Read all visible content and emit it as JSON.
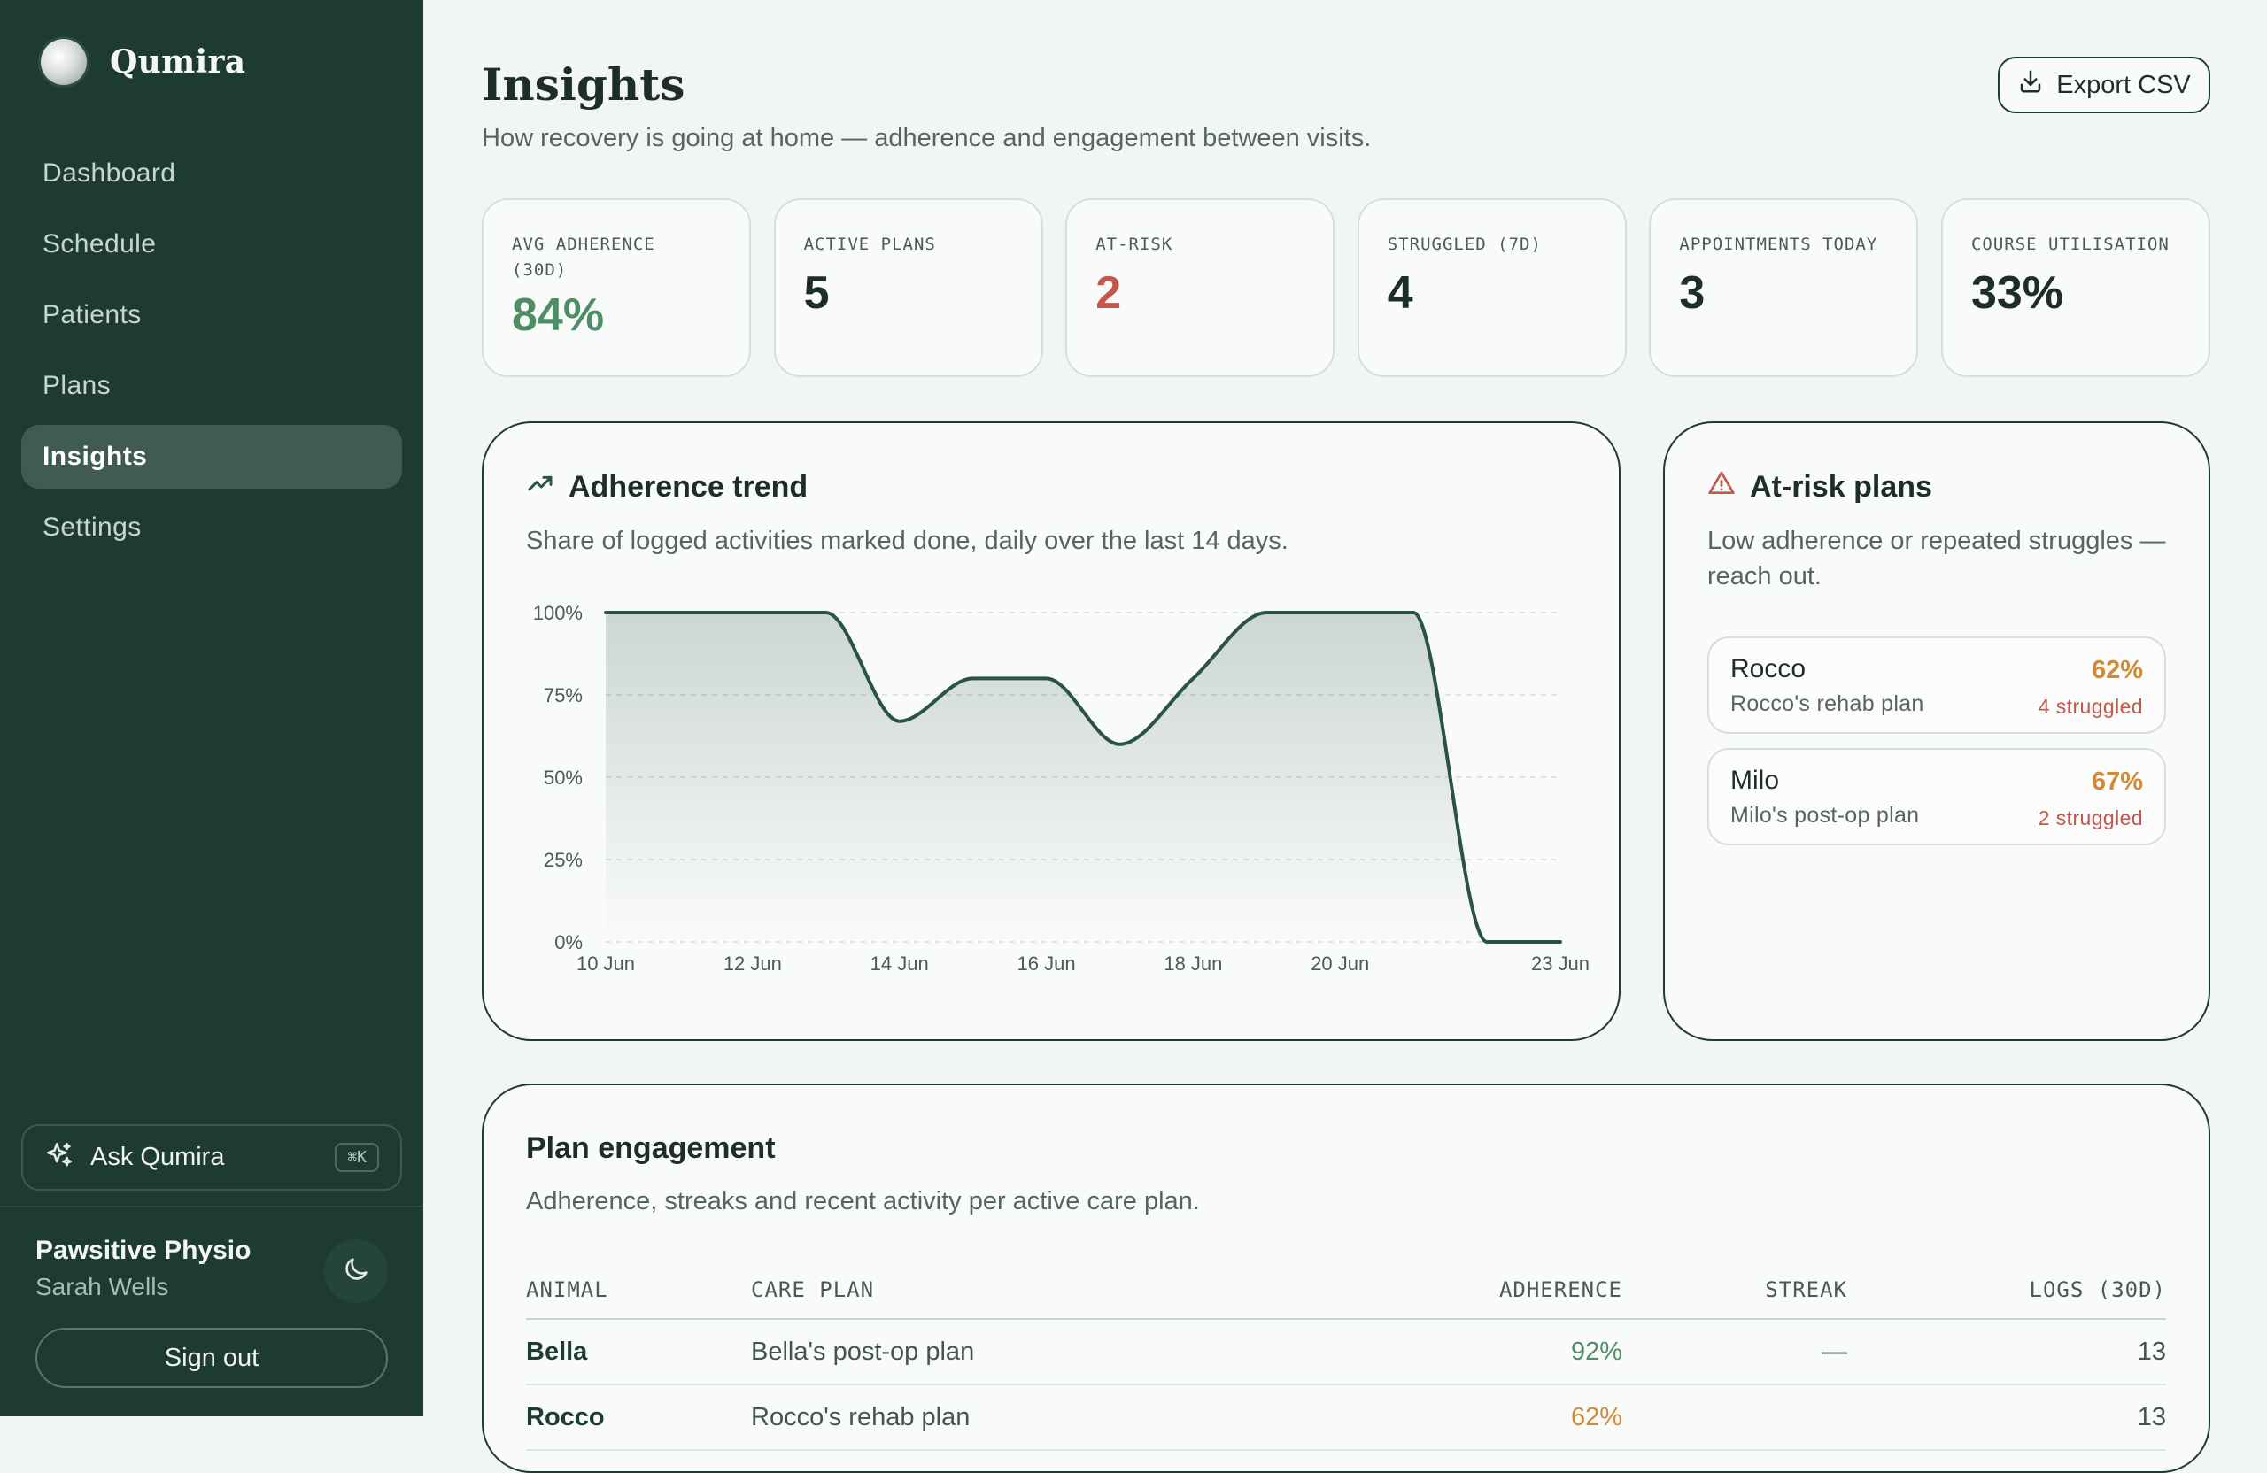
{
  "app": {
    "name": "Qumira"
  },
  "nav": [
    {
      "label": "Dashboard",
      "active": false
    },
    {
      "label": "Schedule",
      "active": false
    },
    {
      "label": "Patients",
      "active": false
    },
    {
      "label": "Plans",
      "active": false
    },
    {
      "label": "Insights",
      "active": true
    },
    {
      "label": "Settings",
      "active": false
    }
  ],
  "ask": {
    "label": "Ask Qumira",
    "shortcut": "⌘K"
  },
  "account": {
    "org": "Pawsitive Physio",
    "user": "Sarah Wells",
    "signout": "Sign out"
  },
  "page": {
    "title": "Insights",
    "subtitle": "How recovery is going at home — adherence and engagement between visits.",
    "export_label": "Export CSV"
  },
  "stats": [
    {
      "label": "AVG ADHERENCE (30D)",
      "value": "84%",
      "color": "#4e8d66"
    },
    {
      "label": "ACTIVE PLANS",
      "value": "5",
      "color": "#1d2e28"
    },
    {
      "label": "AT-RISK",
      "value": "2",
      "color": "#c4574a"
    },
    {
      "label": "STRUGGLED (7D)",
      "value": "4",
      "color": "#1d2e28"
    },
    {
      "label": "APPOINTMENTS TODAY",
      "value": "3",
      "color": "#1d2e28"
    },
    {
      "label": "COURSE UTILISATION",
      "value": "33%",
      "color": "#1d2e28"
    }
  ],
  "trend": {
    "title": "Adherence trend",
    "description": "Share of logged activities marked done, daily over the last 14 days."
  },
  "chart_data": {
    "type": "area",
    "title": "Adherence trend",
    "x": [
      "10 Jun",
      "11 Jun",
      "12 Jun",
      "13 Jun",
      "14 Jun",
      "15 Jun",
      "16 Jun",
      "17 Jun",
      "18 Jun",
      "19 Jun",
      "20 Jun",
      "21 Jun",
      "22 Jun",
      "23 Jun"
    ],
    "values": [
      100,
      100,
      100,
      100,
      67,
      80,
      80,
      60,
      80,
      100,
      100,
      100,
      0,
      0
    ],
    "x_tick_labels": [
      "10 Jun",
      "12 Jun",
      "14 Jun",
      "16 Jun",
      "18 Jun",
      "20 Jun",
      "23 Jun"
    ],
    "y_tick_labels": [
      "0%",
      "25%",
      "50%",
      "75%",
      "100%"
    ],
    "ylim": [
      0,
      100
    ],
    "grid": true,
    "line_color": "#2b5248"
  },
  "risk": {
    "title": "At-risk plans",
    "description": "Low adherence or repeated struggles — reach out.",
    "items": [
      {
        "name": "Rocco",
        "plan": "Rocco's rehab plan",
        "adherence": "62%",
        "struggled": "4 struggled"
      },
      {
        "name": "Milo",
        "plan": "Milo's post-op plan",
        "adherence": "67%",
        "struggled": "2 struggled"
      }
    ]
  },
  "engagement": {
    "title": "Plan engagement",
    "description": "Adherence, streaks and recent activity per active care plan.",
    "columns": [
      "ANIMAL",
      "CARE PLAN",
      "ADHERENCE",
      "STREAK",
      "LOGS (30D)"
    ],
    "rows": [
      {
        "animal": "Bella",
        "plan": "Bella's post-op plan",
        "adherence": "92%",
        "streak": "—",
        "logs": "13"
      },
      {
        "animal": "Rocco",
        "plan": "Rocco's rehab plan",
        "adherence": "62%",
        "streak": "",
        "logs": "13"
      }
    ]
  }
}
